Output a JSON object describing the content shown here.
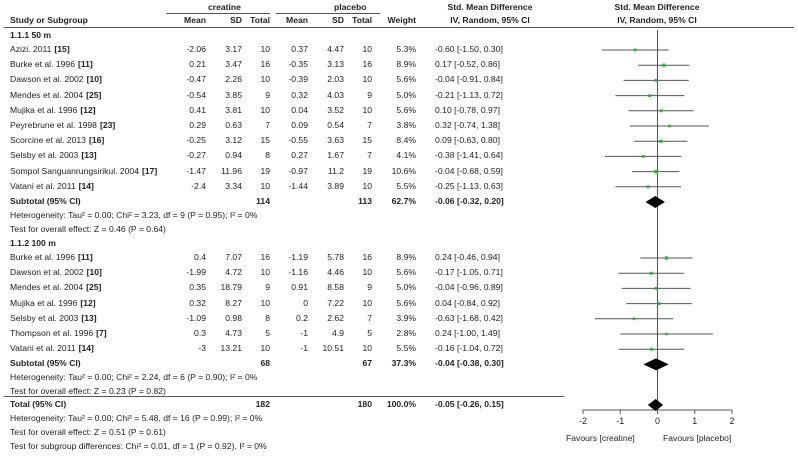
{
  "header": {
    "group1": "creatine",
    "group2": "placebo",
    "col_study": "Study or Subgroup",
    "col_mean": "Mean",
    "col_sd": "SD",
    "col_total": "Total",
    "col_weight": "Weight",
    "smd_title": "Std. Mean Difference",
    "smd_method": "IV, Random, 95% CI",
    "plot_title": "Std. Mean Difference",
    "plot_method": "IV, Random, 95% CI"
  },
  "subgroups": [
    {
      "title": "1.1.1 50 m",
      "studies": [
        {
          "name": "Azizi. 2011",
          "ref": "[15]",
          "m1": "-2.06",
          "sd1": "3.17",
          "n1": "10",
          "m2": "0.37",
          "sd2": "4.47",
          "n2": "10",
          "weight": "5.3%",
          "ci_text": "-0.60 [-1.50, 0.30]"
        },
        {
          "name": "Burke et al. 1996",
          "ref": "[11]",
          "m1": "0.21",
          "sd1": "3.47",
          "n1": "16",
          "m2": "-0.35",
          "sd2": "3.13",
          "n2": "16",
          "weight": "8.9%",
          "ci_text": "0.17 [-0.52, 0.86]"
        },
        {
          "name": "Dawson et al. 2002",
          "ref": "[10]",
          "m1": "-0.47",
          "sd1": "2.26",
          "n1": "10",
          "m2": "-0.39",
          "sd2": "2.03",
          "n2": "10",
          "weight": "5.6%",
          "ci_text": "-0.04 [-0.91, 0.84]"
        },
        {
          "name": "Mendes et al. 2004",
          "ref": "[25]",
          "m1": "-0.54",
          "sd1": "3.85",
          "n1": "9",
          "m2": "0.32",
          "sd2": "4.03",
          "n2": "9",
          "weight": "5.0%",
          "ci_text": "-0.21 [-1.13, 0.72]"
        },
        {
          "name": "Mujika et al. 1996",
          "ref": "[12]",
          "m1": "0.41",
          "sd1": "3.81",
          "n1": "10",
          "m2": "0.04",
          "sd2": "3.52",
          "n2": "10",
          "weight": "5.6%",
          "ci_text": "0.10 [-0.78, 0.97]"
        },
        {
          "name": "Peyrebrune et al. 1998",
          "ref": "[23]",
          "m1": "0.29",
          "sd1": "0.63",
          "n1": "7",
          "m2": "0.09",
          "sd2": "0.54",
          "n2": "7",
          "weight": "3.8%",
          "ci_text": "0.32 [-0.74, 1.38]"
        },
        {
          "name": "Scorcine et al. 2013",
          "ref": "[16]",
          "m1": "-0.25",
          "sd1": "3.12",
          "n1": "15",
          "m2": "-0.55",
          "sd2": "3.63",
          "n2": "15",
          "weight": "8.4%",
          "ci_text": "0.09 [-0.63, 0.80]"
        },
        {
          "name": "Selsby et al. 2003",
          "ref": "[13]",
          "m1": "-0.27",
          "sd1": "0.94",
          "n1": "8",
          "m2": "0.27",
          "sd2": "1.67",
          "n2": "7",
          "weight": "4.1%",
          "ci_text": "-0.38 [-1.41, 0.64]"
        },
        {
          "name": "Sompol Sanguanrungsirikul. 2004",
          "ref": "[17]",
          "m1": "-1.47",
          "sd1": "11.96",
          "n1": "19",
          "m2": "-0.97",
          "sd2": "11.2",
          "n2": "19",
          "weight": "10.6%",
          "ci_text": "-0.04 [-0.68, 0.59]"
        },
        {
          "name": "Vatani  et al. 2011",
          "ref": "[14]",
          "m1": "-2.4",
          "sd1": "3.34",
          "n1": "10",
          "m2": "-1.44",
          "sd2": "3.89",
          "n2": "10",
          "weight": "5.5%",
          "ci_text": "-0.25 [-1.13, 0.63]"
        }
      ],
      "subtotal": {
        "label": "Subtotal (95% CI)",
        "n1": "114",
        "n2": "113",
        "weight": "62.7%",
        "ci_text": "-0.06 [-0.32, 0.20]"
      },
      "heterogeneity": "Heterogeneity: Tau² = 0.00; Chi² = 3.23, df = 9 (P = 0.95); I² = 0%",
      "overall_effect": "Test for overall effect: Z = 0.46 (P = 0.64)"
    },
    {
      "title": "1.1.2 100 m",
      "studies": [
        {
          "name": "Burke et al. 1996",
          "ref": "[11]",
          "m1": "0.4",
          "sd1": "7.07",
          "n1": "16",
          "m2": "-1.19",
          "sd2": "5.78",
          "n2": "16",
          "weight": "8.9%",
          "ci_text": "0.24 [-0.46, 0.94]"
        },
        {
          "name": "Dawson et al. 2002",
          "ref": "[10]",
          "m1": "-1.99",
          "sd1": "4.72",
          "n1": "10",
          "m2": "-1.16",
          "sd2": "4.46",
          "n2": "10",
          "weight": "5.6%",
          "ci_text": "-0.17 [-1.05, 0.71]"
        },
        {
          "name": "Mendes et al. 2004",
          "ref": "[25]",
          "m1": "0.35",
          "sd1": "18.79",
          "n1": "9",
          "m2": "0.91",
          "sd2": "8.58",
          "n2": "9",
          "weight": "5.0%",
          "ci_text": "-0.04 [-0.96, 0.89]"
        },
        {
          "name": "Mujika et al. 1996",
          "ref": "[12]",
          "m1": "0.32",
          "sd1": "8.27",
          "n1": "10",
          "m2": "0",
          "sd2": "7.22",
          "n2": "10",
          "weight": "5.6%",
          "ci_text": "0.04 [-0.84, 0.92]"
        },
        {
          "name": "Selsby et al. 2003",
          "ref": "[13]",
          "m1": "-1.09",
          "sd1": "0.98",
          "n1": "8",
          "m2": "0.2",
          "sd2": "2.62",
          "n2": "7",
          "weight": "3.9%",
          "ci_text": "-0.63 [-1.68, 0.42]"
        },
        {
          "name": "Thompson et al. 1996",
          "ref": "[7]",
          "m1": "0.3",
          "sd1": "4.73",
          "n1": "5",
          "m2": "-1",
          "sd2": "4.9",
          "n2": "5",
          "weight": "2.8%",
          "ci_text": "0.24 [-1.00, 1.49]"
        },
        {
          "name": "Vatani  et al. 2011",
          "ref": "[14]",
          "m1": "-3",
          "sd1": "13.21",
          "n1": "10",
          "m2": "-1",
          "sd2": "10.51",
          "n2": "10",
          "weight": "5.5%",
          "ci_text": "-0.16 [-1.04, 0.72]"
        }
      ],
      "subtotal": {
        "label": "Subtotal (95% CI)",
        "n1": "68",
        "n2": "67",
        "weight": "37.3%",
        "ci_text": "-0.04 [-0.38, 0.30]"
      },
      "heterogeneity": "Heterogeneity: Tau² = 0.00; Chi² = 2.24, df = 6 (P = 0.90); I² = 0%",
      "overall_effect": "Test for overall effect: Z = 0.23 (P = 0.82)"
    }
  ],
  "total": {
    "label": "Total (95% CI)",
    "n1": "182",
    "n2": "180",
    "weight": "100.0%",
    "ci_text": "-0.05 [-0.26, 0.15]"
  },
  "total_heterogeneity": "Heterogeneity: Tau² = 0.00; Chi² = 5.48, df = 16 (P = 0.99); I² = 0%",
  "total_overall_effect": "Test for overall effect: Z = 0.51 (P = 0.61)",
  "subgroup_differences": "Test for subgroup differences: Chi² = 0.01, df = 1 (P = 0.92), I² = 0%",
  "chart_data": {
    "type": "forest",
    "title": "Std. Mean Difference",
    "subtitle": "IV, Random, 95% CI",
    "xlim": [
      -2,
      2
    ],
    "xticks": [
      -2,
      -1,
      0,
      1,
      2
    ],
    "xtick_labels": [
      "-2",
      "-1",
      "0",
      "1",
      "2"
    ],
    "favours_left": "Favours [creatine]",
    "favours_right": "Favours [placebo]",
    "series": [
      {
        "name": "1.1.1 50 m",
        "points": [
          {
            "study": "Azizi. 2011",
            "est": -0.6,
            "lo": -1.5,
            "hi": 0.3,
            "weight": 5.3
          },
          {
            "study": "Burke et al. 1996",
            "est": 0.17,
            "lo": -0.52,
            "hi": 0.86,
            "weight": 8.9
          },
          {
            "study": "Dawson et al. 2002",
            "est": -0.04,
            "lo": -0.91,
            "hi": 0.84,
            "weight": 5.6
          },
          {
            "study": "Mendes et al. 2004",
            "est": -0.21,
            "lo": -1.13,
            "hi": 0.72,
            "weight": 5.0
          },
          {
            "study": "Mujika et al. 1996",
            "est": 0.1,
            "lo": -0.78,
            "hi": 0.97,
            "weight": 5.6
          },
          {
            "study": "Peyrebrune et al. 1998",
            "est": 0.32,
            "lo": -0.74,
            "hi": 1.38,
            "weight": 3.8
          },
          {
            "study": "Scorcine et al. 2013",
            "est": 0.09,
            "lo": -0.63,
            "hi": 0.8,
            "weight": 8.4
          },
          {
            "study": "Selsby et al. 2003",
            "est": -0.38,
            "lo": -1.41,
            "hi": 0.64,
            "weight": 4.1
          },
          {
            "study": "Sompol Sanguanrungsirikul. 2004",
            "est": -0.04,
            "lo": -0.68,
            "hi": 0.59,
            "weight": 10.6
          },
          {
            "study": "Vatani  et al. 2011",
            "est": -0.25,
            "lo": -1.13,
            "hi": 0.63,
            "weight": 5.5
          }
        ],
        "subtotal": {
          "est": -0.06,
          "lo": -0.32,
          "hi": 0.2
        }
      },
      {
        "name": "1.1.2 100 m",
        "points": [
          {
            "study": "Burke et al. 1996",
            "est": 0.24,
            "lo": -0.46,
            "hi": 0.94,
            "weight": 8.9
          },
          {
            "study": "Dawson et al. 2002",
            "est": -0.17,
            "lo": -1.05,
            "hi": 0.71,
            "weight": 5.6
          },
          {
            "study": "Mendes et al. 2004",
            "est": -0.04,
            "lo": -0.96,
            "hi": 0.89,
            "weight": 5.0
          },
          {
            "study": "Mujika et al. 1996",
            "est": 0.04,
            "lo": -0.84,
            "hi": 0.92,
            "weight": 5.6
          },
          {
            "study": "Selsby et al. 2003",
            "est": -0.63,
            "lo": -1.68,
            "hi": 0.42,
            "weight": 3.9
          },
          {
            "study": "Thompson et al. 1996",
            "est": 0.24,
            "lo": -1.0,
            "hi": 1.49,
            "weight": 2.8
          },
          {
            "study": "Vatani  et al. 2011",
            "est": -0.16,
            "lo": -1.04,
            "hi": 0.72,
            "weight": 5.5
          }
        ],
        "subtotal": {
          "est": -0.04,
          "lo": -0.38,
          "hi": 0.3
        }
      }
    ],
    "overall": {
      "est": -0.05,
      "lo": -0.26,
      "hi": 0.15
    },
    "colors": {
      "point": "#22bb22",
      "line": "#555555",
      "diamond": "#000000"
    }
  }
}
